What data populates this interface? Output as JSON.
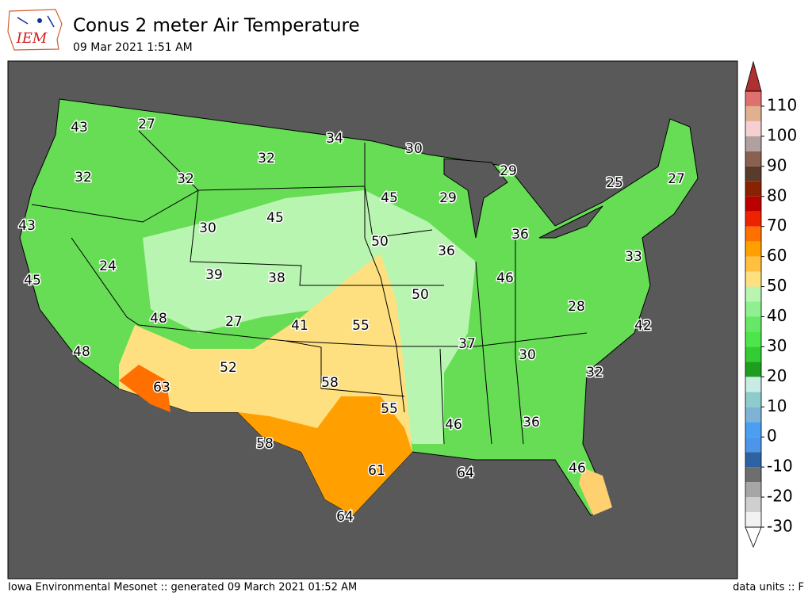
{
  "logo_text": "IEM",
  "title": "Conus 2 meter Air Temperature",
  "subtitle": "09 Mar 2021 1:51 AM",
  "footer_left": "Iowa Environmental Mesonet :: generated 09 March 2021 01:52 AM",
  "footer_right": "data units :: F",
  "station_values": [
    43,
    27,
    34,
    30,
    32,
    29,
    32,
    32,
    25,
    27,
    45,
    29,
    43,
    30,
    45,
    36,
    50,
    36,
    33,
    24,
    39,
    38,
    46,
    45,
    50,
    28,
    48,
    27,
    41,
    55,
    42,
    37,
    30,
    48,
    52,
    32,
    63,
    58,
    55,
    46,
    36,
    58,
    61,
    64,
    46,
    64
  ],
  "colorbar": {
    "ticks": [
      -30,
      -20,
      -10,
      0,
      10,
      20,
      30,
      40,
      50,
      60,
      70,
      80,
      90,
      100,
      110
    ],
    "lim": [
      -30,
      115
    ],
    "step": 5,
    "colors": [
      "#f2f2f2",
      "#cfcfcf",
      "#a6a6a6",
      "#6e6e6e",
      "#2e63a3",
      "#4b96e8",
      "#4b9ff2",
      "#7fb3d5",
      "#8ecccc",
      "#c8ece4",
      "#1e9e1e",
      "#33cc33",
      "#4ce64c",
      "#66e866",
      "#8ef08e",
      "#b8f5b0",
      "#ffe080",
      "#ffc040",
      "#ffa000",
      "#ff7000",
      "#ee2200",
      "#bb0000",
      "#882200",
      "#5a3a2a",
      "#8a6050",
      "#b0a0a0",
      "#f5d0d0",
      "#e0b090",
      "#e07070"
    ],
    "under_color": "#ffffff",
    "over_color": "#b03030"
  }
}
